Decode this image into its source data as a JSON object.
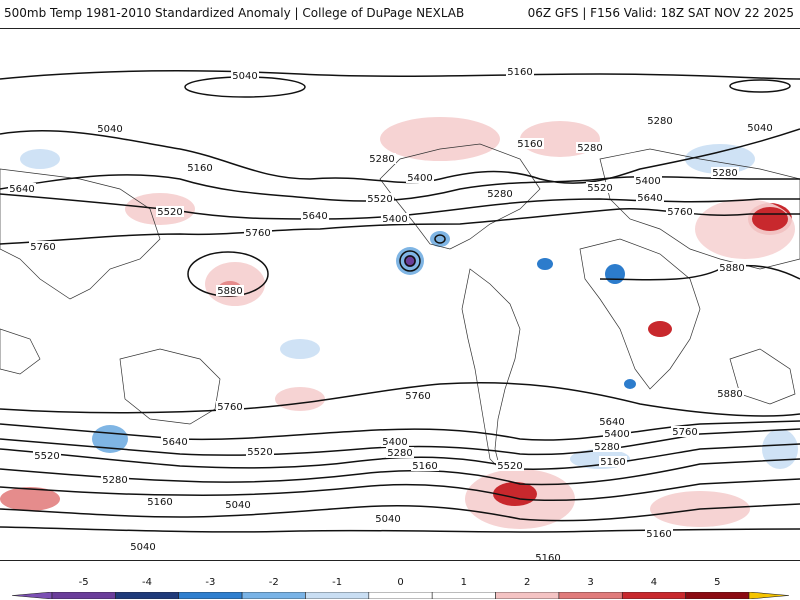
{
  "header": {
    "title": "500mb Temp 1981-2010 Standardized Anomaly | College of DuPage NEXLAB",
    "run_info": "06Z GFS | F156 Valid: 18Z SAT NOV 22 2025"
  },
  "colorbar": {
    "ticks": [
      "-5",
      "-4",
      "-3",
      "-2",
      "-1",
      "0",
      "1",
      "2",
      "3",
      "4",
      "5"
    ],
    "colors": [
      "#6a3d9a",
      "#1f3a7a",
      "#2f7fcf",
      "#79b3e6",
      "#c9def3",
      "#ffffff",
      "#ffffff",
      "#f4c3c3",
      "#e07b7b",
      "#c8282d",
      "#8b0a12"
    ],
    "arrow_low_color": "#7b4fb3",
    "arrow_high_color": "#f5c400"
  },
  "contours": {
    "labels": [
      "5040",
      "5160",
      "5280",
      "5040",
      "5160",
      "5040",
      "5280",
      "5280",
      "5400",
      "5520",
      "5640",
      "5280",
      "5160",
      "5520",
      "5400",
      "5640",
      "5400",
      "5520",
      "5640",
      "5760",
      "5280",
      "5760",
      "5760",
      "5880",
      "5880",
      "5880",
      "5760",
      "5760",
      "5640",
      "5400",
      "5520",
      "5280",
      "5160",
      "5520",
      "5640",
      "5400",
      "5280",
      "5160",
      "5640",
      "5400",
      "5280",
      "5160",
      "5760",
      "5520",
      "5160",
      "5040",
      "5040",
      "5040",
      "5160",
      "5160"
    ]
  },
  "colors": {
    "anomaly_pos_light": "#f6d3d3",
    "anomaly_pos_mid": "#e58c8c",
    "anomaly_pos_strong": "#c8282d",
    "anomaly_neg_light": "#cfe2f5",
    "anomaly_neg_mid": "#7fb5e4",
    "anomaly_neg_strong": "#2c7ccc",
    "contour": "#111111",
    "coast": "#333333"
  }
}
